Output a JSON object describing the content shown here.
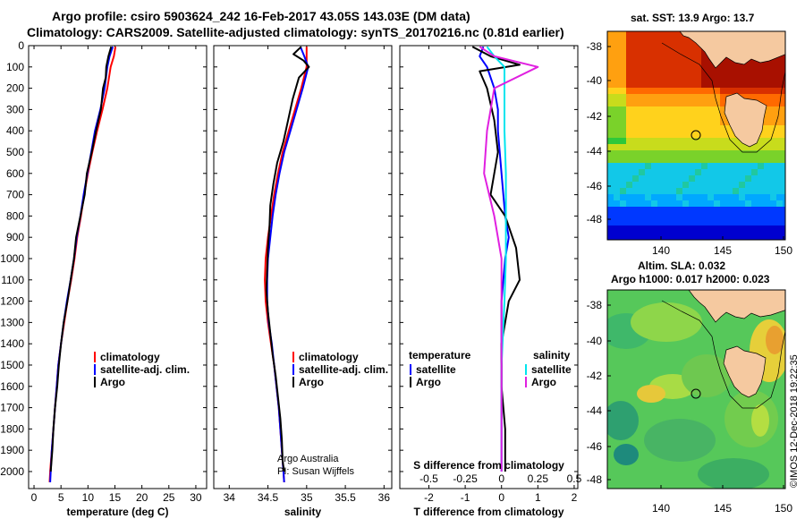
{
  "title": {
    "line1": "Argo profile: csiro 5903624_242 16-Feb-2017 43.05S 143.03E (DM data)",
    "line2": "Climatology: CARS2009. Satellite-adjusted climatology: synTS_20170216.nc (0.81d earlier)"
  },
  "colors": {
    "climatology": "#ff0000",
    "satellite": "#0000ff",
    "argo": "#000000",
    "satellite_s": "#00e5ee",
    "argo_s": "#e020e0"
  },
  "credit": {
    "line1": "Argo Australia",
    "line2": "PI: Susan Wijffels"
  },
  "timestamp": "©IMOS 12-Dec-2018 19:22:35",
  "maps": {
    "sst_title": "sat. SST: 13.9 Argo: 13.7",
    "sla_title1": "Altim. SLA: 0.032",
    "sla_title2": "Argo h1000: 0.017 h2000: 0.023",
    "lat_ticks": [
      "-38",
      "-40",
      "-42",
      "-44",
      "-46",
      "-48"
    ],
    "lon_ticks": [
      "140",
      "145",
      "150"
    ],
    "float_position": {
      "lon": 143.03,
      "lat": -43.05
    }
  },
  "chart_data": [
    {
      "type": "line",
      "id": "temperature",
      "xlabel": "temperature (deg C)",
      "xlim": [
        -1,
        32
      ],
      "ylim": [
        2080,
        0
      ],
      "xticks": [
        0,
        5,
        10,
        15,
        20,
        25,
        30
      ],
      "yticks": [
        0,
        100,
        200,
        300,
        400,
        500,
        600,
        700,
        800,
        900,
        1000,
        1100,
        1200,
        1300,
        1400,
        1500,
        1600,
        1700,
        1800,
        1900,
        2000
      ],
      "legend": [
        "climatology",
        "satellite-adj. clim.",
        "Argo"
      ],
      "series": [
        {
          "name": "climatology",
          "color": "#ff0000",
          "points": [
            [
              15.1,
              5
            ],
            [
              14.8,
              50
            ],
            [
              14.2,
              100
            ],
            [
              13.6,
              200
            ],
            [
              12.7,
              300
            ],
            [
              11.7,
              400
            ],
            [
              10.8,
              500
            ],
            [
              10.0,
              600
            ],
            [
              9.3,
              700
            ],
            [
              8.7,
              800
            ],
            [
              8.0,
              900
            ],
            [
              7.5,
              1000
            ],
            [
              6.9,
              1100
            ],
            [
              6.2,
              1200
            ],
            [
              5.6,
              1300
            ],
            [
              5.0,
              1400
            ],
            [
              4.5,
              1500
            ],
            [
              4.2,
              1600
            ],
            [
              3.9,
              1700
            ],
            [
              3.6,
              1800
            ],
            [
              3.3,
              1900
            ],
            [
              3.0,
              2000
            ],
            [
              2.9,
              2050
            ]
          ]
        },
        {
          "name": "satellite-adj. clim.",
          "color": "#0000ff",
          "points": [
            [
              14.6,
              5
            ],
            [
              14.0,
              50
            ],
            [
              13.6,
              100
            ],
            [
              13.1,
              200
            ],
            [
              12.3,
              300
            ],
            [
              11.3,
              400
            ],
            [
              10.6,
              500
            ],
            [
              9.9,
              600
            ],
            [
              9.2,
              700
            ],
            [
              8.6,
              800
            ],
            [
              7.9,
              900
            ],
            [
              7.4,
              1000
            ],
            [
              6.8,
              1100
            ],
            [
              6.1,
              1200
            ],
            [
              5.5,
              1300
            ],
            [
              5.0,
              1400
            ],
            [
              4.5,
              1500
            ],
            [
              4.2,
              1600
            ],
            [
              3.9,
              1700
            ],
            [
              3.6,
              1800
            ],
            [
              3.3,
              1900
            ],
            [
              3.1,
              2000
            ],
            [
              3.0,
              2050
            ]
          ]
        },
        {
          "name": "Argo",
          "color": "#000000",
          "points": [
            [
              14.3,
              5
            ],
            [
              13.8,
              50
            ],
            [
              13.4,
              100
            ],
            [
              13.3,
              150
            ],
            [
              12.8,
              200
            ],
            [
              12.4,
              300
            ],
            [
              11.5,
              400
            ],
            [
              10.7,
              500
            ],
            [
              9.8,
              600
            ],
            [
              9.4,
              700
            ],
            [
              8.6,
              800
            ],
            [
              7.8,
              900
            ],
            [
              7.4,
              1000
            ],
            [
              6.8,
              1100
            ],
            [
              6.2,
              1200
            ],
            [
              5.5,
              1300
            ],
            [
              5.0,
              1400
            ],
            [
              4.6,
              1500
            ],
            [
              4.3,
              1600
            ],
            [
              3.9,
              1700
            ],
            [
              3.6,
              1800
            ],
            [
              3.4,
              1900
            ],
            [
              3.1,
              2000
            ]
          ]
        }
      ]
    },
    {
      "type": "line",
      "id": "salinity",
      "xlabel": "salinity",
      "xlim": [
        33.8,
        36.1
      ],
      "ylim": [
        2080,
        0
      ],
      "xticks": [
        34,
        34.5,
        35,
        35.5,
        36
      ],
      "legend": [
        "climatology",
        "satellite-adj. clim.",
        "Argo"
      ],
      "series": [
        {
          "name": "climatology",
          "color": "#ff0000",
          "points": [
            [
              35.0,
              5
            ],
            [
              35.0,
              50
            ],
            [
              35.0,
              100
            ],
            [
              34.93,
              200
            ],
            [
              34.85,
              300
            ],
            [
              34.77,
              400
            ],
            [
              34.69,
              500
            ],
            [
              34.63,
              600
            ],
            [
              34.58,
              700
            ],
            [
              34.54,
              800
            ],
            [
              34.5,
              900
            ],
            [
              34.47,
              1000
            ],
            [
              34.46,
              1100
            ],
            [
              34.47,
              1200
            ],
            [
              34.5,
              1300
            ],
            [
              34.54,
              1400
            ],
            [
              34.58,
              1500
            ],
            [
              34.61,
              1600
            ],
            [
              34.64,
              1700
            ],
            [
              34.66,
              1800
            ],
            [
              34.68,
              1900
            ],
            [
              34.7,
              2000
            ],
            [
              34.71,
              2050
            ]
          ]
        },
        {
          "name": "satellite-adj. clim.",
          "color": "#0000ff",
          "points": [
            [
              34.92,
              5
            ],
            [
              34.97,
              50
            ],
            [
              35.02,
              100
            ],
            [
              34.95,
              200
            ],
            [
              34.87,
              300
            ],
            [
              34.79,
              400
            ],
            [
              34.71,
              500
            ],
            [
              34.65,
              600
            ],
            [
              34.6,
              700
            ],
            [
              34.56,
              800
            ],
            [
              34.53,
              900
            ],
            [
              34.5,
              1000
            ],
            [
              34.49,
              1100
            ],
            [
              34.49,
              1200
            ],
            [
              34.51,
              1300
            ],
            [
              34.55,
              1400
            ],
            [
              34.58,
              1500
            ],
            [
              34.61,
              1600
            ],
            [
              34.64,
              1700
            ],
            [
              34.66,
              1800
            ],
            [
              34.68,
              1900
            ],
            [
              34.7,
              2000
            ],
            [
              34.71,
              2050
            ]
          ]
        },
        {
          "name": "Argo",
          "color": "#000000",
          "points": [
            [
              34.93,
              5
            ],
            [
              34.83,
              40
            ],
            [
              34.96,
              70
            ],
            [
              35.03,
              100
            ],
            [
              34.9,
              150
            ],
            [
              34.82,
              250
            ],
            [
              34.76,
              350
            ],
            [
              34.7,
              450
            ],
            [
              34.62,
              550
            ],
            [
              34.57,
              650
            ],
            [
              34.53,
              750
            ],
            [
              34.52,
              850
            ],
            [
              34.5,
              950
            ],
            [
              34.49,
              1050
            ],
            [
              34.48,
              1150
            ],
            [
              34.5,
              1250
            ],
            [
              34.53,
              1350
            ],
            [
              34.56,
              1450
            ],
            [
              34.6,
              1550
            ],
            [
              34.63,
              1650
            ],
            [
              34.66,
              1750
            ],
            [
              34.68,
              1850
            ],
            [
              34.69,
              1950
            ],
            [
              34.71,
              2000
            ]
          ]
        }
      ]
    },
    {
      "type": "line",
      "id": "differences",
      "xlabel": "T difference from climatology",
      "xlabel2": "S difference from climatology",
      "xlim": [
        -2.8,
        2.1
      ],
      "ylim": [
        2080,
        0
      ],
      "xticks": [
        -2,
        -1,
        0,
        1,
        2
      ],
      "xticks_s": [
        "-0.5",
        "-0.25",
        "0",
        "0.25",
        "0.5"
      ],
      "legend_temperature_title": "temperature",
      "legend_salinity_title": "salinity",
      "legend": [
        "satellite",
        "Argo",
        "satellite",
        "Argo"
      ],
      "series": [
        {
          "name": "T satellite",
          "color": "#0000ff",
          "points": [
            [
              -0.5,
              5
            ],
            [
              -0.6,
              50
            ],
            [
              -0.4,
              100
            ],
            [
              -0.2,
              200
            ],
            [
              -0.1,
              300
            ],
            [
              -0.1,
              400
            ],
            [
              0.0,
              600
            ],
            [
              0.1,
              800
            ],
            [
              0.2,
              900
            ],
            [
              0.1,
              1000
            ],
            [
              0.0,
              1200
            ],
            [
              0.0,
              1500
            ],
            [
              0.0,
              2000
            ]
          ]
        },
        {
          "name": "T Argo",
          "color": "#000000",
          "points": [
            [
              -0.8,
              5
            ],
            [
              -0.3,
              50
            ],
            [
              0.5,
              90
            ],
            [
              -0.6,
              120
            ],
            [
              -0.4,
              200
            ],
            [
              -0.2,
              350
            ],
            [
              -0.1,
              500
            ],
            [
              -0.3,
              700
            ],
            [
              0.1,
              800
            ],
            [
              0.4,
              950
            ],
            [
              0.5,
              1100
            ],
            [
              0.2,
              1200
            ],
            [
              0.0,
              1400
            ],
            [
              0.0,
              1600
            ],
            [
              0.1,
              1800
            ],
            [
              0.1,
              2000
            ]
          ]
        },
        {
          "name": "S satellite",
          "color": "#00e5ee",
          "points": [
            [
              -0.1,
              5
            ],
            [
              -0.05,
              50
            ],
            [
              0.02,
              100
            ],
            [
              0.02,
              200
            ],
            [
              0.02,
              300
            ],
            [
              0.02,
              400
            ],
            [
              0.03,
              600
            ],
            [
              0.03,
              800
            ],
            [
              0.03,
              1000
            ],
            [
              0.02,
              1200
            ],
            [
              0.0,
              1500
            ],
            [
              0.0,
              2000
            ]
          ]
        },
        {
          "name": "S Argo",
          "color": "#e020e0",
          "points": [
            [
              -0.15,
              5
            ],
            [
              -0.05,
              50
            ],
            [
              0.25,
              100
            ],
            [
              -0.05,
              200
            ],
            [
              -0.1,
              400
            ],
            [
              -0.12,
              600
            ],
            [
              -0.05,
              800
            ],
            [
              0.0,
              1000
            ],
            [
              0.0,
              1200
            ],
            [
              0.0,
              1500
            ],
            [
              0.0,
              2000
            ]
          ]
        }
      ]
    }
  ]
}
